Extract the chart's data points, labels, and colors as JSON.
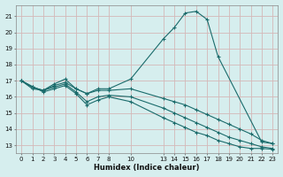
{
  "xlabel": "Humidex (Indice chaleur)",
  "bg_color": "#d6eeee",
  "grid_color": "#d4b8b8",
  "line_color": "#1a6b6b",
  "xlim": [
    -0.5,
    23.5
  ],
  "ylim": [
    12.5,
    21.7
  ],
  "xtick_positions": [
    0,
    1,
    2,
    3,
    4,
    5,
    6,
    7,
    8,
    10,
    13,
    14,
    15,
    16,
    17,
    18,
    19,
    20,
    21,
    22,
    23
  ],
  "xtick_labels": [
    "0",
    "1",
    "2",
    "3",
    "4",
    "5",
    "6",
    "7",
    "8",
    "10",
    "13",
    "14",
    "15",
    "16",
    "17",
    "18",
    "19",
    "20",
    "21",
    "22",
    "23"
  ],
  "ytick_positions": [
    13,
    14,
    15,
    16,
    17,
    18,
    19,
    20,
    21
  ],
  "ytick_labels": [
    "13",
    "14",
    "15",
    "16",
    "17",
    "18",
    "19",
    "20",
    "21"
  ],
  "lines": [
    {
      "x": [
        0,
        1,
        2,
        3,
        4,
        5,
        6,
        7,
        8,
        10,
        13,
        14,
        15,
        16,
        17,
        18,
        22,
        23
      ],
      "y": [
        17.0,
        16.6,
        16.4,
        16.8,
        17.1,
        16.5,
        16.2,
        16.5,
        16.5,
        17.1,
        19.6,
        20.3,
        21.2,
        21.3,
        20.8,
        18.5,
        13.2,
        13.1
      ]
    },
    {
      "x": [
        0,
        1,
        2,
        3,
        4,
        5,
        6,
        7,
        8,
        10,
        13,
        14,
        15,
        16,
        17,
        18,
        19,
        20,
        21,
        22,
        23
      ],
      "y": [
        17.0,
        16.6,
        16.4,
        16.7,
        16.9,
        16.5,
        16.2,
        16.4,
        16.4,
        16.5,
        15.9,
        15.7,
        15.5,
        15.2,
        14.9,
        14.6,
        14.3,
        14.0,
        13.7,
        13.3,
        13.1
      ]
    },
    {
      "x": [
        0,
        1,
        2,
        3,
        4,
        5,
        6,
        7,
        8,
        10,
        13,
        14,
        15,
        16,
        17,
        18,
        19,
        20,
        21,
        22,
        23
      ],
      "y": [
        17.0,
        16.5,
        16.4,
        16.6,
        16.8,
        16.3,
        15.7,
        16.0,
        16.1,
        16.0,
        15.3,
        15.0,
        14.7,
        14.4,
        14.1,
        13.8,
        13.5,
        13.3,
        13.1,
        12.9,
        12.8
      ]
    },
    {
      "x": [
        0,
        2,
        3,
        4,
        5,
        6,
        7,
        8,
        10,
        13,
        14,
        15,
        16,
        17,
        18,
        19,
        20,
        21,
        22,
        23
      ],
      "y": [
        17.0,
        16.3,
        16.5,
        16.7,
        16.2,
        15.5,
        15.8,
        16.0,
        15.7,
        14.7,
        14.4,
        14.1,
        13.8,
        13.6,
        13.3,
        13.1,
        12.9,
        12.8,
        12.8,
        12.75
      ]
    }
  ]
}
